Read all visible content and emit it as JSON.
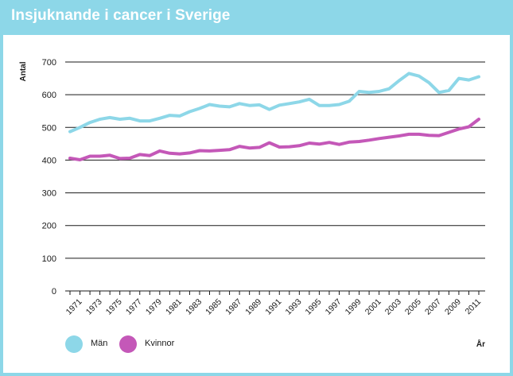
{
  "header": {
    "title": "Insjuknande i cancer i Sverige"
  },
  "colors": {
    "header_bg": "#8dd7e8",
    "men": "#8dd7e8",
    "women": "#c458b8",
    "grid": "#1a1a1a"
  },
  "chart_data": {
    "type": "line",
    "title": "Insjuknande i cancer i Sverige",
    "ylabel": "Antal",
    "xlabel": "År",
    "ylim": [
      0,
      700
    ],
    "yticks": [
      0,
      100,
      200,
      300,
      400,
      500,
      600,
      700
    ],
    "x": [
      1970,
      1971,
      1972,
      1973,
      1974,
      1975,
      1976,
      1977,
      1978,
      1979,
      1980,
      1981,
      1982,
      1983,
      1984,
      1985,
      1986,
      1987,
      1988,
      1989,
      1990,
      1991,
      1992,
      1993,
      1994,
      1995,
      1996,
      1997,
      1998,
      1999,
      2000,
      2001,
      2002,
      2003,
      2004,
      2005,
      2006,
      2007,
      2008,
      2009,
      2010,
      2011
    ],
    "xtick_labels": [
      "1971",
      "1973",
      "1975",
      "1977",
      "1979",
      "1981",
      "1983",
      "1985",
      "1987",
      "1989",
      "1991",
      "1993",
      "1995",
      "1997",
      "1999",
      "2001",
      "2003",
      "2005",
      "2007",
      "2009",
      "2011"
    ],
    "series": [
      {
        "name": "Män",
        "values": [
          487,
          500,
          515,
          525,
          530,
          525,
          528,
          520,
          520,
          528,
          537,
          535,
          548,
          558,
          570,
          565,
          563,
          573,
          567,
          569,
          555,
          568,
          573,
          578,
          586,
          567,
          567,
          570,
          580,
          610,
          607,
          610,
          618,
          643,
          665,
          657,
          637,
          607,
          613,
          650,
          645,
          655
        ]
      },
      {
        "name": "Kvinnor",
        "values": [
          406,
          401,
          412,
          412,
          415,
          405,
          406,
          417,
          414,
          428,
          421,
          419,
          422,
          429,
          428,
          430,
          432,
          442,
          437,
          439,
          453,
          440,
          441,
          444,
          452,
          449,
          454,
          448,
          455,
          457,
          461,
          466,
          470,
          474,
          479,
          479,
          476,
          475,
          485,
          495,
          502,
          525
        ]
      }
    ],
    "legend": [
      "Män",
      "Kvinnor"
    ]
  }
}
